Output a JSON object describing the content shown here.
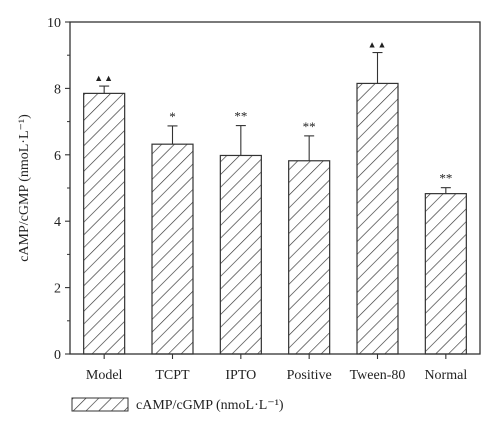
{
  "chart_data": {
    "type": "bar",
    "categories": [
      "Model",
      "TCPT",
      "IPTO",
      "Positive",
      "Tween-80",
      "Normal"
    ],
    "series": [
      {
        "name": "cAMP/cGMP (nmoL·L⁻¹)",
        "values": [
          7.85,
          6.32,
          5.98,
          5.82,
          8.15,
          4.83
        ],
        "error": [
          0.22,
          0.55,
          0.9,
          0.75,
          0.93,
          0.18
        ]
      }
    ],
    "annotations": [
      "▲▲",
      "*",
      "**",
      "**",
      "▲▲",
      "**"
    ],
    "ylabel": "cAMP/cGMP (nmoL·L⁻¹)",
    "xlabel": "",
    "ylim": [
      0,
      10
    ],
    "yticks": [
      0,
      2,
      4,
      6,
      8,
      10
    ],
    "legend_position": "bottom-left",
    "bar_fill": "diagonal-hatch",
    "grid": false
  }
}
